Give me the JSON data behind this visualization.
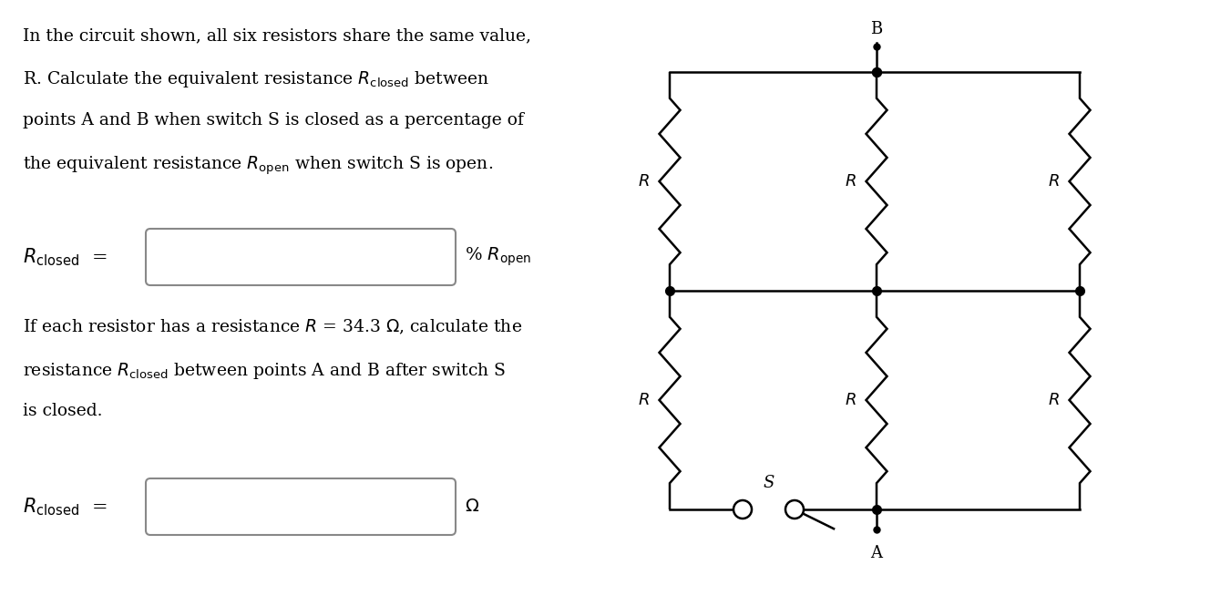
{
  "bg_color": "#ffffff",
  "text_color": "#000000",
  "paragraph1_line1": "In the circuit shown, all six resistors share the same value,",
  "paragraph1_line2": "R. Calculate the equivalent resistance $R_\\mathrm{closed}$ between",
  "paragraph1_line3": "points A and B when switch S is closed as a percentage of",
  "paragraph1_line4": "the equivalent resistance $R_\\mathrm{open}$ when switch S is open.",
  "eq1_label": "$R_\\mathrm{closed}$",
  "eq1_unit": "% $R_\\mathrm{open}$",
  "paragraph2_line1": "If each resistor has a resistance $R$ = 34.3 $\\Omega$, calculate the",
  "paragraph2_line2": "resistance $R_\\mathrm{closed}$ between points A and B after switch S",
  "paragraph2_line3": "is closed.",
  "eq2_label": "$R_\\mathrm{closed}$",
  "eq2_unit": "$\\Omega$",
  "box_color": "#888888",
  "circuit_line_color": "#000000",
  "dot_color": "#000000",
  "font_size_text": 13.5,
  "font_size_eq": 15,
  "font_size_circuit_label": 13
}
